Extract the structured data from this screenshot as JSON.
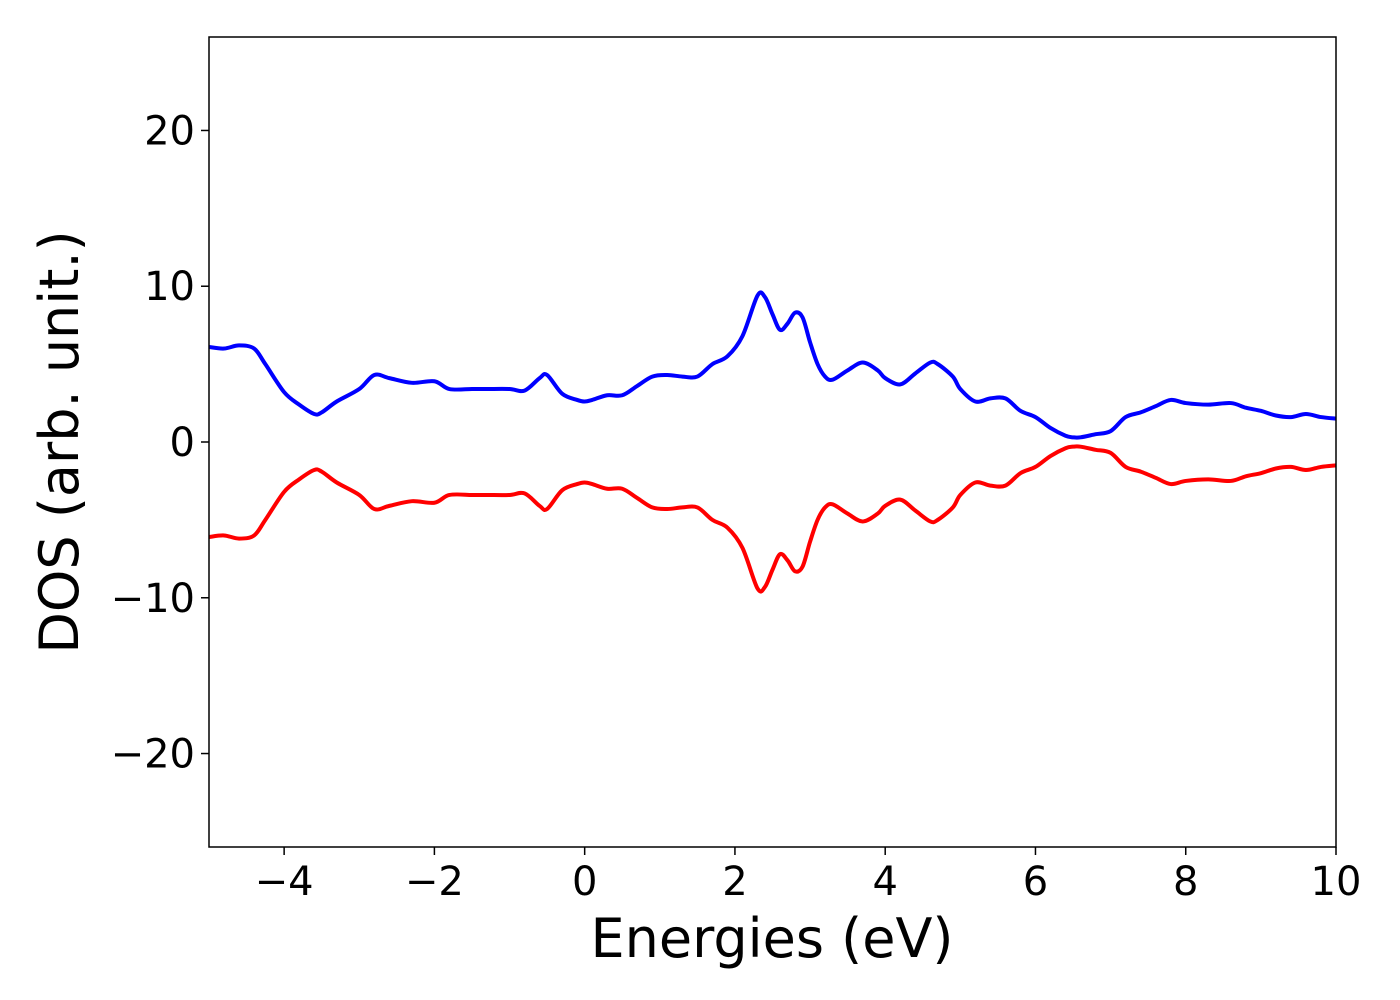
{
  "chart_data": {
    "type": "line",
    "title": "",
    "xlabel": "Energies (eV)",
    "ylabel": "DOS (arb. unit.)",
    "xlim": [
      -5,
      10
    ],
    "ylim": [
      -26,
      26
    ],
    "grid": false,
    "legend": "none",
    "x_ticks": [
      -4,
      -2,
      0,
      2,
      4,
      6,
      8,
      10
    ],
    "x_tick_labels": [
      "−4",
      "−2",
      "0",
      "2",
      "4",
      "6",
      "8",
      "10"
    ],
    "y_ticks": [
      -20,
      -10,
      0,
      10,
      20
    ],
    "y_tick_labels": [
      "−20",
      "−10",
      "0",
      "10",
      "20"
    ],
    "series": [
      {
        "color": "#0000ff",
        "x": [
          -5.0,
          -4.8,
          -4.6,
          -4.4,
          -4.25,
          -4.0,
          -3.8,
          -3.6,
          -3.5,
          -3.3,
          -3.0,
          -2.8,
          -2.6,
          -2.3,
          -2.0,
          -1.8,
          -1.5,
          -1.3,
          -1.0,
          -0.8,
          -0.6,
          -0.5,
          -0.3,
          -0.1,
          0.0,
          0.1,
          0.3,
          0.5,
          0.7,
          0.9,
          1.1,
          1.3,
          1.5,
          1.7,
          1.9,
          2.1,
          2.3,
          2.4,
          2.5,
          2.6,
          2.7,
          2.8,
          2.9,
          3.0,
          3.1,
          3.2,
          3.3,
          3.5,
          3.7,
          3.9,
          4.0,
          4.2,
          4.4,
          4.6,
          4.7,
          4.9,
          5.0,
          5.2,
          5.4,
          5.6,
          5.8,
          6.0,
          6.2,
          6.4,
          6.5,
          6.6,
          6.8,
          7.0,
          7.2,
          7.4,
          7.6,
          7.8,
          8.0,
          8.3,
          8.6,
          8.8,
          9.0,
          9.2,
          9.4,
          9.6,
          9.8,
          10.0
        ],
        "y": [
          6.1,
          6.0,
          6.2,
          6.0,
          5.0,
          3.2,
          2.4,
          1.8,
          1.9,
          2.6,
          3.4,
          4.3,
          4.1,
          3.8,
          3.9,
          3.4,
          3.4,
          3.4,
          3.4,
          3.3,
          4.1,
          4.3,
          3.1,
          2.7,
          2.6,
          2.7,
          3.0,
          3.0,
          3.6,
          4.2,
          4.3,
          4.2,
          4.2,
          5.0,
          5.5,
          6.8,
          9.4,
          9.3,
          8.2,
          7.2,
          7.6,
          8.3,
          8.0,
          6.4,
          5.0,
          4.2,
          4.0,
          4.6,
          5.1,
          4.6,
          4.1,
          3.7,
          4.4,
          5.1,
          5.0,
          4.2,
          3.4,
          2.6,
          2.8,
          2.8,
          2.0,
          1.6,
          0.9,
          0.4,
          0.3,
          0.3,
          0.5,
          0.7,
          1.6,
          1.9,
          2.3,
          2.7,
          2.5,
          2.4,
          2.5,
          2.2,
          2.0,
          1.7,
          1.6,
          1.8,
          1.6,
          1.5
        ]
      },
      {
        "color": "#ff0000",
        "x": [
          -5.0,
          -4.8,
          -4.6,
          -4.4,
          -4.25,
          -4.0,
          -3.8,
          -3.6,
          -3.5,
          -3.3,
          -3.0,
          -2.8,
          -2.6,
          -2.3,
          -2.0,
          -1.8,
          -1.5,
          -1.3,
          -1.0,
          -0.8,
          -0.6,
          -0.5,
          -0.3,
          -0.1,
          0.0,
          0.1,
          0.3,
          0.5,
          0.7,
          0.9,
          1.1,
          1.3,
          1.5,
          1.7,
          1.9,
          2.1,
          2.3,
          2.4,
          2.5,
          2.6,
          2.7,
          2.8,
          2.9,
          3.0,
          3.1,
          3.2,
          3.3,
          3.5,
          3.7,
          3.9,
          4.0,
          4.2,
          4.4,
          4.6,
          4.7,
          4.9,
          5.0,
          5.2,
          5.4,
          5.6,
          5.8,
          6.0,
          6.2,
          6.4,
          6.5,
          6.6,
          6.8,
          7.0,
          7.2,
          7.4,
          7.6,
          7.8,
          8.0,
          8.3,
          8.6,
          8.8,
          9.0,
          9.2,
          9.4,
          9.6,
          9.8,
          10.0
        ],
        "y": [
          -6.1,
          -6.0,
          -6.2,
          -6.0,
          -5.0,
          -3.2,
          -2.4,
          -1.8,
          -1.9,
          -2.6,
          -3.4,
          -4.3,
          -4.1,
          -3.8,
          -3.9,
          -3.4,
          -3.4,
          -3.4,
          -3.4,
          -3.3,
          -4.1,
          -4.3,
          -3.1,
          -2.7,
          -2.6,
          -2.7,
          -3.0,
          -3.0,
          -3.6,
          -4.2,
          -4.3,
          -4.2,
          -4.2,
          -5.0,
          -5.5,
          -6.8,
          -9.4,
          -9.3,
          -8.2,
          -7.2,
          -7.6,
          -8.3,
          -8.0,
          -6.4,
          -5.0,
          -4.2,
          -4.0,
          -4.6,
          -5.1,
          -4.6,
          -4.1,
          -3.7,
          -4.4,
          -5.1,
          -5.0,
          -4.2,
          -3.4,
          -2.6,
          -2.8,
          -2.8,
          -2.0,
          -1.6,
          -0.9,
          -0.4,
          -0.3,
          -0.3,
          -0.5,
          -0.7,
          -1.6,
          -1.9,
          -2.3,
          -2.7,
          -2.5,
          -2.4,
          -2.5,
          -2.2,
          -2.0,
          -1.7,
          -1.6,
          -1.8,
          -1.6,
          -1.5
        ]
      }
    ]
  }
}
